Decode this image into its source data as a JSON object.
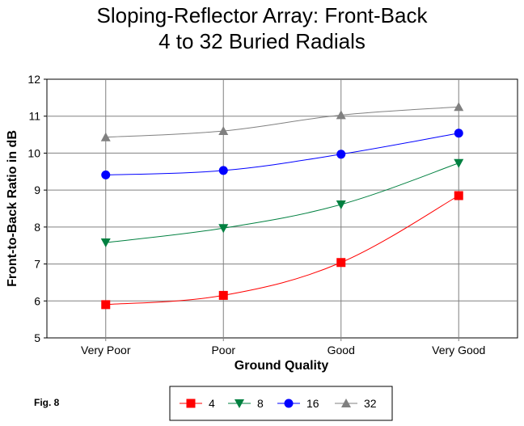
{
  "chart_data": {
    "type": "line",
    "title": [
      "Sloping-Reflector Array:  Front-Back",
      "4 to 32 Buried Radials"
    ],
    "xlabel": "Ground Quality",
    "ylabel": "Front-to-Back Ratio in dB",
    "categories": [
      "Very Poor",
      "Poor",
      "Good",
      "Very Good"
    ],
    "ylim": [
      5,
      12
    ],
    "yticks": [
      "5",
      "6",
      "7",
      "8",
      "9",
      "10",
      "11",
      "12"
    ],
    "grid": true,
    "legend_position": "bottom-center",
    "series": [
      {
        "name": "4",
        "values": [
          5.9,
          6.15,
          7.04,
          8.85
        ],
        "color": "#ff0000",
        "marker": "square"
      },
      {
        "name": "8",
        "values": [
          7.58,
          7.97,
          8.61,
          9.73
        ],
        "color": "#008040",
        "marker": "triangle-down"
      },
      {
        "name": "16",
        "values": [
          9.41,
          9.53,
          9.97,
          10.54
        ],
        "color": "#0000ff",
        "marker": "circle"
      },
      {
        "name": "32",
        "values": [
          10.43,
          10.6,
          11.03,
          11.25
        ],
        "color": "#808080",
        "marker": "triangle-up"
      }
    ]
  },
  "figure_label": "Fig. 8"
}
